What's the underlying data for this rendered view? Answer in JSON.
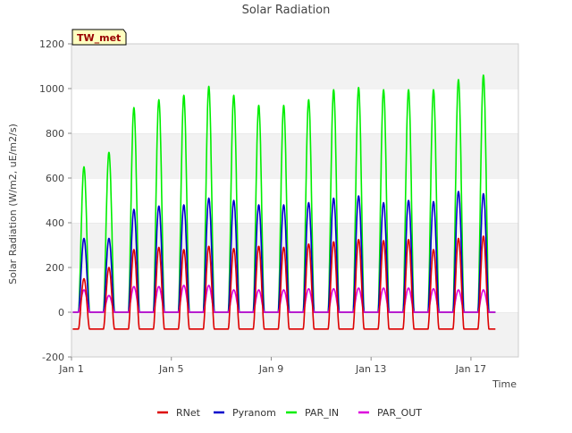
{
  "chart_data": {
    "type": "line",
    "title": "Solar Radiation",
    "xlabel": "Time",
    "ylabel": "Solar Radiation (W/m2, uE/m2/s)",
    "site_label": "TW_met",
    "xlim": [
      1.0,
      18.9
    ],
    "ylim": [
      -200,
      1200
    ],
    "yticks": [
      -200,
      0,
      200,
      400,
      600,
      800,
      1000,
      1200
    ],
    "xticks": [
      {
        "value": 1,
        "label": "Jan 1"
      },
      {
        "value": 5,
        "label": "Jan 5"
      },
      {
        "value": 9,
        "label": "Jan 9"
      },
      {
        "value": 13,
        "label": "Jan 13"
      },
      {
        "value": 17,
        "label": "Jan 17"
      }
    ],
    "grid": "horizontal bands",
    "legend_position": "bottom",
    "days": [
      1.5,
      2.5,
      3.5,
      4.5,
      5.5,
      6.5,
      7.5,
      8.5,
      9.5,
      10.5,
      11.5,
      12.5,
      13.5,
      14.5,
      15.5,
      16.5,
      17.5
    ],
    "series": [
      {
        "name": "RNet",
        "color": "#dd0000",
        "daily_peaks": [
          150,
          200,
          280,
          290,
          280,
          295,
          285,
          295,
          290,
          305,
          315,
          325,
          320,
          325,
          280,
          330,
          340
        ],
        "night_value": -75
      },
      {
        "name": "Pyranom",
        "color": "#0000cc",
        "daily_peaks": [
          330,
          330,
          460,
          475,
          480,
          510,
          500,
          480,
          480,
          490,
          510,
          520,
          490,
          500,
          495,
          540,
          530
        ],
        "night_value": 0
      },
      {
        "name": "PAR_IN",
        "color": "#00ee00",
        "daily_peaks": [
          650,
          715,
          915,
          950,
          970,
          1010,
          970,
          925,
          925,
          950,
          995,
          1005,
          995,
          995,
          995,
          1040,
          1060
        ],
        "night_value": 0
      },
      {
        "name": "PAR_OUT",
        "color": "#dd00dd",
        "daily_peaks": [
          100,
          75,
          115,
          115,
          120,
          120,
          100,
          100,
          100,
          105,
          105,
          108,
          108,
          108,
          105,
          100,
          100
        ],
        "night_value": 0
      }
    ]
  }
}
